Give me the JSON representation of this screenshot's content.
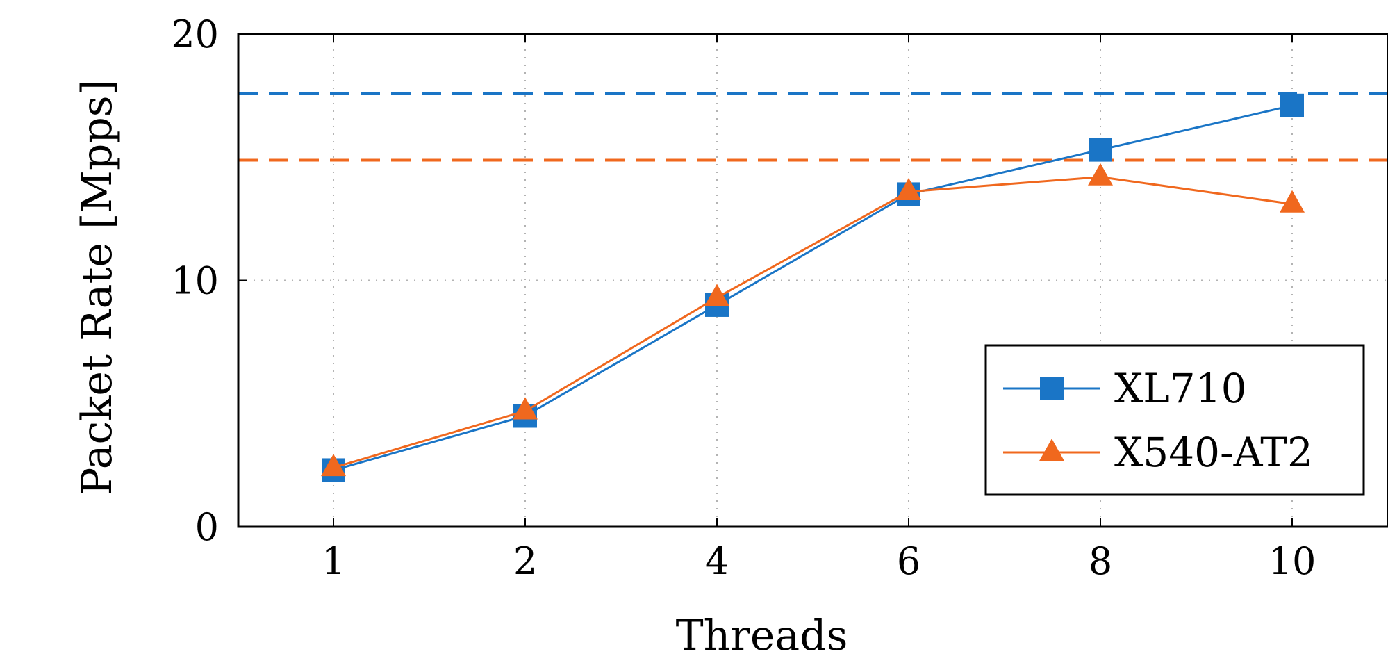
{
  "chart_data": {
    "type": "line",
    "title": "",
    "xlabel": "Threads",
    "ylabel": "Packet Rate [Mpps]",
    "categories": [
      "1",
      "2",
      "4",
      "6",
      "8",
      "10"
    ],
    "yticks": [
      "0",
      "10",
      "20"
    ],
    "ylim": [
      0,
      20
    ],
    "grid": true,
    "legend_position": "bottom-right",
    "series": [
      {
        "name": "XL710",
        "marker": "square",
        "color": "#1a75c6",
        "values": [
          2.3,
          4.5,
          9.0,
          13.5,
          15.3,
          17.1
        ]
      },
      {
        "name": "X540-AT2",
        "marker": "triangle",
        "color": "#f0681e",
        "values": [
          2.4,
          4.7,
          9.3,
          13.6,
          14.2,
          13.1
        ]
      }
    ],
    "reference_lines": [
      {
        "series": "XL710",
        "value": 17.6,
        "style": "dashed",
        "color": "#1a75c6"
      },
      {
        "series": "X540-AT2",
        "value": 14.88,
        "style": "dashed",
        "color": "#f0681e"
      }
    ]
  }
}
